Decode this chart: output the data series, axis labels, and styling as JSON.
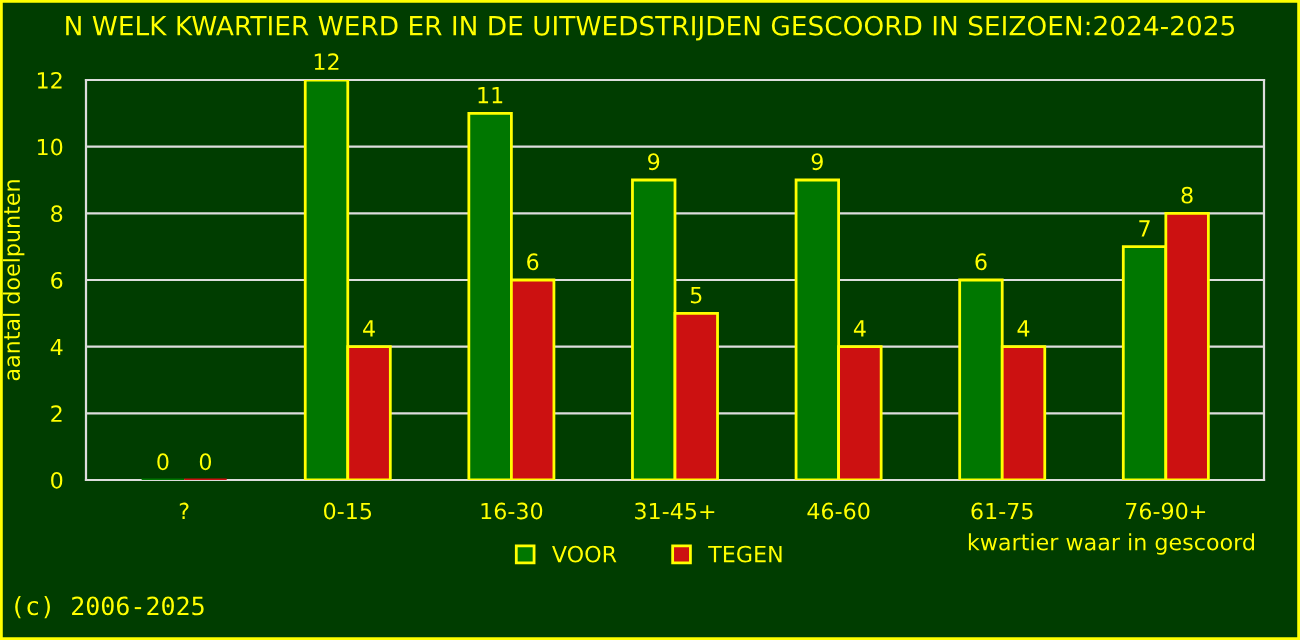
{
  "chart_data": {
    "type": "bar",
    "title": "N WELK KWARTIER WERD ER IN DE UITWEDSTRIJDEN GESCOORD IN SEIZOEN:2024-2025",
    "xlabel": "kwartier waar in gescoord",
    "ylabel": "aantal doelpunten",
    "categories": [
      "?",
      "0-15",
      "16-30",
      "31-45+",
      "46-60",
      "61-75",
      "76-90+"
    ],
    "series": [
      {
        "name": "VOOR",
        "color": "#007700",
        "values": [
          0,
          12,
          11,
          9,
          9,
          6,
          7
        ]
      },
      {
        "name": "TEGEN",
        "color": "#cc1111",
        "values": [
          0,
          4,
          6,
          5,
          4,
          4,
          8
        ]
      }
    ],
    "ylim": [
      0,
      12
    ],
    "yticks": [
      0,
      2,
      4,
      6,
      8,
      10,
      12
    ],
    "grid": "y",
    "legend": "bottom",
    "data_labels": true,
    "annotations": [
      "(c) 2006-2025"
    ]
  }
}
